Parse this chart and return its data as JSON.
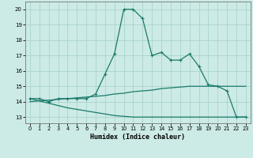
{
  "xlabel": "Humidex (Indice chaleur)",
  "background_color": "#cceae6",
  "grid_color": "#aad4ce",
  "line_color": "#1a7a6a",
  "x_ticks": [
    0,
    1,
    2,
    3,
    4,
    5,
    6,
    7,
    8,
    9,
    10,
    11,
    12,
    13,
    14,
    15,
    16,
    17,
    18,
    19,
    20,
    21,
    22,
    23
  ],
  "y_ticks": [
    13,
    14,
    15,
    16,
    17,
    18,
    19,
    20
  ],
  "ylim": [
    12.6,
    20.5
  ],
  "xlim": [
    -0.5,
    23.5
  ],
  "series1_x": [
    0,
    1,
    2,
    3,
    4,
    5,
    6,
    7,
    8,
    9,
    10,
    11,
    12,
    13,
    14,
    15,
    16,
    17,
    18,
    19,
    20,
    21,
    22,
    23
  ],
  "series1_y": [
    14.2,
    14.2,
    14.0,
    14.2,
    14.2,
    14.2,
    14.2,
    14.5,
    15.8,
    17.1,
    20.0,
    20.0,
    19.4,
    17.0,
    17.2,
    16.7,
    16.7,
    17.1,
    16.3,
    15.1,
    15.0,
    14.7,
    13.0,
    13.0
  ],
  "series2_x": [
    0,
    1,
    2,
    3,
    4,
    5,
    6,
    7,
    8,
    9,
    10,
    11,
    12,
    13,
    14,
    15,
    16,
    17,
    18,
    19,
    20,
    21,
    22,
    23
  ],
  "series2_y": [
    14.0,
    14.05,
    14.1,
    14.15,
    14.2,
    14.25,
    14.3,
    14.35,
    14.4,
    14.5,
    14.55,
    14.65,
    14.7,
    14.75,
    14.85,
    14.9,
    14.95,
    15.0,
    15.0,
    15.0,
    15.0,
    15.0,
    15.0,
    15.0
  ],
  "series3_x": [
    0,
    1,
    2,
    3,
    4,
    5,
    6,
    7,
    8,
    9,
    10,
    11,
    12,
    13,
    14,
    15,
    16,
    17,
    18,
    19,
    20,
    21,
    22,
    23
  ],
  "series3_y": [
    14.2,
    14.05,
    13.9,
    13.75,
    13.6,
    13.5,
    13.4,
    13.3,
    13.2,
    13.1,
    13.05,
    13.0,
    13.0,
    13.0,
    13.0,
    13.0,
    13.0,
    13.0,
    13.0,
    13.0,
    13.0,
    13.0,
    13.0,
    13.0
  ],
  "marker": "+"
}
